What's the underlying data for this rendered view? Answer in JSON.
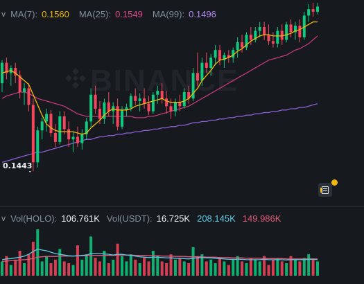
{
  "price_header": {
    "ma7_label": "MA(7):",
    "ma7_value": "0.1560",
    "ma25_label": "MA(25):",
    "ma25_value": "0.1549",
    "ma99_label": "MA(99):",
    "ma99_value": "0.1496"
  },
  "volume_header": {
    "vol_base_label": "Vol(HOLO):",
    "vol_base_value": "106.761K",
    "vol_quote_label": "Vol(USDT):",
    "vol_quote_value": "16.725K",
    "ma_a_value": "208.145K",
    "ma_b_value": "149.986K"
  },
  "low_price_label": "0.1443",
  "watermark_text": "BINANCE",
  "icons": {
    "collapse": "chevron-down-icon",
    "side_button": "order-book-icon"
  },
  "colors": {
    "background": "#161a1e",
    "up": "#0ecb81",
    "down": "#f6465d",
    "ma7": "#f0b90b",
    "ma25": "#c2387a",
    "ma99": "#8c5fd6",
    "vol_ma_a": "#5dc9e2",
    "vol_ma_b": "#e0597a"
  },
  "chart_data": {
    "type": "candlestick",
    "series": [
      {
        "name": "MA(7)",
        "last": 0.156
      },
      {
        "name": "MA(25)",
        "last": 0.1549
      },
      {
        "name": "MA(99)",
        "last": 0.1496
      }
    ],
    "price_range": [
      0.1435,
      0.1575
    ],
    "candles": [
      [
        0.1512,
        0.153,
        0.1505,
        0.1528
      ],
      [
        0.1528,
        0.1532,
        0.1515,
        0.152
      ],
      [
        0.152,
        0.1526,
        0.151,
        0.1524
      ],
      [
        0.1524,
        0.1528,
        0.1512,
        0.1518
      ],
      [
        0.1518,
        0.1522,
        0.15,
        0.1505
      ],
      [
        0.1505,
        0.1512,
        0.1495,
        0.1508
      ],
      [
        0.1508,
        0.1512,
        0.149,
        0.1495
      ],
      [
        0.1495,
        0.15,
        0.1443,
        0.145
      ],
      [
        0.145,
        0.1478,
        0.1446,
        0.1475
      ],
      [
        0.1475,
        0.1485,
        0.1468,
        0.1482
      ],
      [
        0.1482,
        0.1492,
        0.1474,
        0.1488
      ],
      [
        0.1488,
        0.1491,
        0.147,
        0.1473
      ],
      [
        0.1473,
        0.148,
        0.1462,
        0.1466
      ],
      [
        0.1466,
        0.149,
        0.1464,
        0.1486
      ],
      [
        0.1486,
        0.149,
        0.1472,
        0.1476
      ],
      [
        0.1476,
        0.1482,
        0.1462,
        0.1468
      ],
      [
        0.1468,
        0.1474,
        0.1458,
        0.147
      ],
      [
        0.147,
        0.1478,
        0.1462,
        0.1465
      ],
      [
        0.1465,
        0.1476,
        0.146,
        0.1472
      ],
      [
        0.1472,
        0.1485,
        0.1468,
        0.1482
      ],
      [
        0.1482,
        0.1508,
        0.1478,
        0.1503
      ],
      [
        0.1503,
        0.151,
        0.1488,
        0.1492
      ],
      [
        0.1492,
        0.1498,
        0.148,
        0.1484
      ],
      [
        0.1484,
        0.15,
        0.148,
        0.1497
      ],
      [
        0.1497,
        0.1505,
        0.1486,
        0.149
      ],
      [
        0.149,
        0.1497,
        0.148,
        0.1494
      ],
      [
        0.1494,
        0.15,
        0.1475,
        0.1478
      ],
      [
        0.1478,
        0.1494,
        0.1476,
        0.1491
      ],
      [
        0.1491,
        0.1496,
        0.1486,
        0.1493
      ],
      [
        0.1493,
        0.1504,
        0.149,
        0.1502
      ],
      [
        0.1502,
        0.1508,
        0.1495,
        0.1498
      ],
      [
        0.1498,
        0.1504,
        0.149,
        0.15
      ],
      [
        0.15,
        0.1508,
        0.1492,
        0.1496
      ],
      [
        0.1496,
        0.1502,
        0.1487,
        0.149
      ],
      [
        0.149,
        0.1505,
        0.1488,
        0.1503
      ],
      [
        0.1503,
        0.151,
        0.1496,
        0.1506
      ],
      [
        0.1506,
        0.1512,
        0.1496,
        0.15
      ],
      [
        0.15,
        0.1506,
        0.1488,
        0.1494
      ],
      [
        0.1494,
        0.15,
        0.1484,
        0.149
      ],
      [
        0.149,
        0.15,
        0.1486,
        0.1497
      ],
      [
        0.1497,
        0.1503,
        0.149,
        0.1494
      ],
      [
        0.1494,
        0.1508,
        0.1492,
        0.1505
      ],
      [
        0.1505,
        0.151,
        0.1496,
        0.15
      ],
      [
        0.15,
        0.1524,
        0.1498,
        0.152
      ],
      [
        0.152,
        0.1536,
        0.151,
        0.1514
      ],
      [
        0.1514,
        0.1532,
        0.151,
        0.1528
      ],
      [
        0.1528,
        0.1536,
        0.152,
        0.1524
      ],
      [
        0.1524,
        0.1535,
        0.1518,
        0.1532
      ],
      [
        0.1532,
        0.1542,
        0.1526,
        0.1538
      ],
      [
        0.1538,
        0.1542,
        0.1526,
        0.153
      ],
      [
        0.153,
        0.1536,
        0.1524,
        0.1534
      ],
      [
        0.1534,
        0.1538,
        0.1528,
        0.1532
      ],
      [
        0.1532,
        0.154,
        0.1528,
        0.1538
      ],
      [
        0.1538,
        0.1548,
        0.1532,
        0.1544
      ],
      [
        0.1544,
        0.155,
        0.1536,
        0.154
      ],
      [
        0.154,
        0.1552,
        0.1538,
        0.155
      ],
      [
        0.155,
        0.1556,
        0.1542,
        0.1546
      ],
      [
        0.1546,
        0.1556,
        0.1544,
        0.1553
      ],
      [
        0.1553,
        0.156,
        0.1548,
        0.1556
      ],
      [
        0.1556,
        0.156,
        0.1546,
        0.155
      ],
      [
        0.155,
        0.1558,
        0.1542,
        0.1545
      ],
      [
        0.1545,
        0.1552,
        0.154,
        0.1543
      ],
      [
        0.1543,
        0.1556,
        0.154,
        0.1553
      ],
      [
        0.1553,
        0.1558,
        0.1542,
        0.1546
      ],
      [
        0.1546,
        0.156,
        0.1544,
        0.1558
      ],
      [
        0.1558,
        0.1562,
        0.1548,
        0.1552
      ],
      [
        0.1552,
        0.156,
        0.1546,
        0.1557
      ],
      [
        0.1557,
        0.1562,
        0.1544,
        0.1548
      ],
      [
        0.1548,
        0.1568,
        0.1546,
        0.1565
      ],
      [
        0.1565,
        0.1574,
        0.156,
        0.157
      ],
      [
        0.157,
        0.1575,
        0.1564,
        0.1568
      ],
      [
        0.1568,
        0.1575,
        0.1566,
        0.1572
      ]
    ],
    "ma7": [
      0.152,
      0.1521,
      0.1522,
      0.152,
      0.1517,
      0.1514,
      0.1511,
      0.1503,
      0.1495,
      0.1487,
      0.148,
      0.1477,
      0.1475,
      0.1474,
      0.1474,
      0.1474,
      0.1474,
      0.1473,
      0.1472,
      0.1473,
      0.1477,
      0.148,
      0.1483,
      0.1487,
      0.149,
      0.1492,
      0.1491,
      0.1491,
      0.1491,
      0.1492,
      0.1494,
      0.1495,
      0.1496,
      0.1497,
      0.1498,
      0.1499,
      0.15,
      0.1498,
      0.1497,
      0.1497,
      0.1497,
      0.1498,
      0.15,
      0.1504,
      0.1508,
      0.1514,
      0.1518,
      0.1522,
      0.1527,
      0.153,
      0.1531,
      0.1532,
      0.1534,
      0.1537,
      0.1539,
      0.1542,
      0.1545,
      0.1547,
      0.1549,
      0.155,
      0.155,
      0.1549,
      0.1549,
      0.1549,
      0.155,
      0.1551,
      0.1553,
      0.1554,
      0.1556,
      0.1558,
      0.156,
      0.156
    ],
    "ma25": [
      0.15,
      0.1502,
      0.1503,
      0.1504,
      0.1505,
      0.1505,
      0.1504,
      0.1502,
      0.15,
      0.1499,
      0.1498,
      0.1497,
      0.1496,
      0.1495,
      0.1494,
      0.1492,
      0.149,
      0.1488,
      0.1487,
      0.1486,
      0.1486,
      0.1486,
      0.1486,
      0.1486,
      0.1486,
      0.1486,
      0.1486,
      0.1486,
      0.1486,
      0.1486,
      0.1485,
      0.1485,
      0.1485,
      0.1486,
      0.1486,
      0.1487,
      0.1488,
      0.1489,
      0.149,
      0.1491,
      0.1492,
      0.1493,
      0.1494,
      0.1496,
      0.1498,
      0.15,
      0.1502,
      0.1504,
      0.1506,
      0.1508,
      0.151,
      0.1512,
      0.1514,
      0.1516,
      0.1518,
      0.152,
      0.1522,
      0.1524,
      0.1526,
      0.1528,
      0.153,
      0.1531,
      0.1532,
      0.1533,
      0.1534,
      0.1536,
      0.1538,
      0.1539,
      0.1541,
      0.1543,
      0.1546,
      0.1549
    ],
    "ma99": [
      0.145,
      0.1451,
      0.1452,
      0.1453,
      0.1454,
      0.1455,
      0.1456,
      0.1457,
      0.1458,
      0.1458,
      0.1459,
      0.146,
      0.1461,
      0.1462,
      0.1463,
      0.1464,
      0.1465,
      0.1466,
      0.1467,
      0.1468,
      0.1468,
      0.1469,
      0.147,
      0.147,
      0.1471,
      0.1471,
      0.1472,
      0.1472,
      0.1473,
      0.1473,
      0.1474,
      0.1474,
      0.1475,
      0.1475,
      0.1476,
      0.1476,
      0.1477,
      0.1477,
      0.1478,
      0.1478,
      0.1479,
      0.1479,
      0.148,
      0.1481,
      0.1481,
      0.1482,
      0.1482,
      0.1483,
      0.1483,
      0.1484,
      0.1484,
      0.1485,
      0.1485,
      0.1486,
      0.1486,
      0.1487,
      0.1487,
      0.1488,
      0.1488,
      0.1489,
      0.1489,
      0.149,
      0.149,
      0.1491,
      0.1491,
      0.1492,
      0.1492,
      0.1493,
      0.1493,
      0.1494,
      0.1495,
      0.1496
    ],
    "volume": [
      40,
      55,
      30,
      45,
      70,
      35,
      60,
      95,
      130,
      40,
      55,
      35,
      45,
      75,
      40,
      35,
      30,
      85,
      45,
      60,
      110,
      50,
      40,
      70,
      35,
      45,
      90,
      55,
      40,
      60,
      45,
      35,
      50,
      40,
      70,
      55,
      40,
      35,
      60,
      45,
      50,
      40,
      35,
      80,
      55,
      60,
      40,
      45,
      35,
      50,
      40,
      30,
      45,
      55,
      40,
      35,
      50,
      45,
      40,
      55,
      30,
      45,
      50,
      40,
      35,
      55,
      45,
      40,
      50,
      60,
      45,
      40
    ],
    "volume_range": [
      0,
      140
    ],
    "vol_ma_a": [
      45,
      47,
      48,
      50,
      52,
      55,
      60,
      68,
      75,
      72,
      70,
      66,
      62,
      60,
      58,
      56,
      55,
      56,
      57,
      58,
      62,
      63,
      62,
      61,
      60,
      58,
      60,
      60,
      58,
      57,
      55,
      53,
      52,
      51,
      52,
      52,
      51,
      50,
      50,
      49,
      49,
      48,
      47,
      49,
      50,
      51,
      50,
      50,
      49,
      48,
      47,
      46,
      46,
      46,
      46,
      45,
      45,
      45,
      45,
      46,
      45,
      45,
      45,
      45,
      44,
      45,
      45,
      45,
      45,
      46,
      46,
      45
    ],
    "vol_ma_b": [
      40,
      41,
      42,
      43,
      44,
      45,
      46,
      48,
      52,
      53,
      54,
      54,
      54,
      55,
      55,
      55,
      55,
      56,
      56,
      56,
      57,
      57,
      57,
      57,
      57,
      57,
      58,
      58,
      58,
      58,
      57,
      57,
      57,
      56,
      56,
      56,
      55,
      55,
      55,
      54,
      54,
      54,
      53,
      53,
      53,
      53,
      52,
      52,
      52,
      51,
      51,
      51,
      50,
      50,
      50,
      49,
      49,
      49,
      49,
      48,
      48,
      48,
      48,
      48,
      47,
      47,
      47,
      47,
      47,
      47,
      47,
      47
    ]
  }
}
